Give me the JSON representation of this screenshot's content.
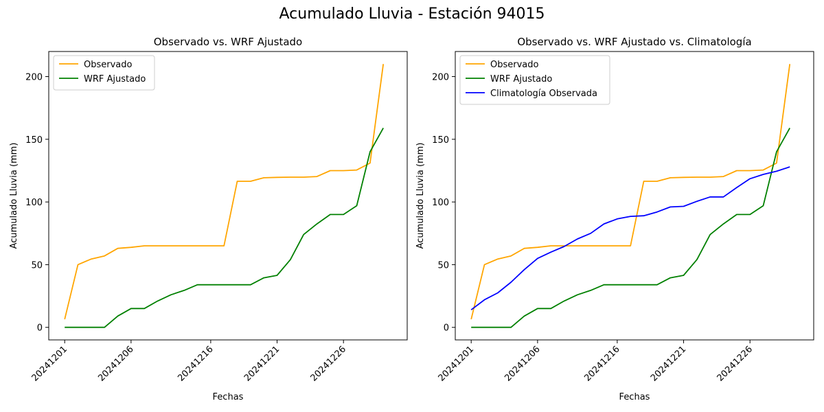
{
  "figure_title": "Acumulado Lluvia - Estación 94015",
  "chart_data": [
    {
      "type": "line",
      "title": "Observado vs. WRF Ajustado",
      "xlabel": "Fechas",
      "ylabel": "Acumulado Lluvia (mm)",
      "x": [
        "20241201",
        "20241202",
        "20241203",
        "20241204",
        "20241205",
        "20241206",
        "20241207",
        "20241208",
        "20241209",
        "20241210",
        "20241211",
        "20241216",
        "20241217",
        "20241218",
        "20241219",
        "20241220",
        "20241221",
        "20241222",
        "20241223",
        "20241224",
        "20241225",
        "20241226",
        "20241227",
        "20241228",
        "20241229",
        "20241230"
      ],
      "xticks": [
        "20241201",
        "20241206",
        "20241216",
        "20241221",
        "20241226"
      ],
      "yticks": [
        0,
        50,
        100,
        150,
        200
      ],
      "ylim": [
        -10,
        220
      ],
      "grid": false,
      "legend_position": "top-left",
      "series": [
        {
          "name": "Observado",
          "color": "#ffa500",
          "values": [
            6.5,
            50,
            54.5,
            57,
            63,
            63.8,
            65,
            65,
            65,
            65,
            65,
            65,
            65,
            116.5,
            116.5,
            119.3,
            119.6,
            119.8,
            119.8,
            120.3,
            125,
            125,
            125.5,
            131,
            210,
            null
          ]
        },
        {
          "name": "WRF Ajustado",
          "color": "#008000",
          "values": [
            0,
            0,
            0,
            0,
            9,
            15,
            15,
            21,
            26,
            29.5,
            34,
            34,
            34,
            34,
            34,
            39.5,
            41.5,
            54,
            74,
            82.5,
            90,
            90,
            97,
            140,
            159,
            null
          ]
        }
      ]
    },
    {
      "type": "line",
      "title": "Observado vs. WRF Ajustado vs. Climatología",
      "xlabel": "Fechas",
      "ylabel": "Acumulado Lluvia (mm)",
      "x": [
        "20241201",
        "20241202",
        "20241203",
        "20241204",
        "20241205",
        "20241206",
        "20241207",
        "20241208",
        "20241209",
        "20241210",
        "20241211",
        "20241216",
        "20241217",
        "20241218",
        "20241219",
        "20241220",
        "20241221",
        "20241222",
        "20241223",
        "20241224",
        "20241225",
        "20241226",
        "20241227",
        "20241228",
        "20241229",
        "20241230"
      ],
      "xticks": [
        "20241201",
        "20241206",
        "20241216",
        "20241221",
        "20241226"
      ],
      "yticks": [
        0,
        50,
        100,
        150,
        200
      ],
      "ylim": [
        -10,
        220
      ],
      "grid": false,
      "legend_position": "top-left",
      "series": [
        {
          "name": "Observado",
          "color": "#ffa500",
          "values": [
            6.5,
            50,
            54.5,
            57,
            63,
            63.8,
            65,
            65,
            65,
            65,
            65,
            65,
            65,
            116.5,
            116.5,
            119.3,
            119.6,
            119.8,
            119.8,
            120.3,
            125,
            125,
            125.5,
            131,
            210,
            null
          ]
        },
        {
          "name": "WRF Ajustado",
          "color": "#008000",
          "values": [
            0,
            0,
            0,
            0,
            9,
            15,
            15,
            21,
            26,
            29.5,
            34,
            34,
            34,
            34,
            34,
            39.5,
            41.5,
            54,
            74,
            82.5,
            90,
            90,
            97,
            140,
            159,
            null
          ]
        },
        {
          "name": "Climatología Observada",
          "color": "#0000ff",
          "values": [
            14,
            22,
            27.5,
            36,
            46,
            55,
            60,
            64.5,
            70.5,
            75,
            82.5,
            86.5,
            88.5,
            89,
            92,
            96,
            96.5,
            100.5,
            104,
            104,
            111.5,
            118.5,
            122,
            124.5,
            128,
            null
          ]
        }
      ]
    }
  ]
}
